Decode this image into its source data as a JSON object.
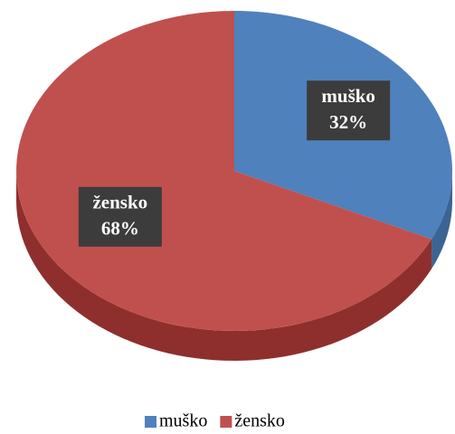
{
  "chart_data": {
    "type": "pie",
    "categories": [
      "muško",
      "žensko"
    ],
    "values": [
      32,
      68
    ],
    "value_labels": [
      "32%",
      "68%"
    ],
    "colors": [
      "#4f81bd",
      "#c0504d"
    ],
    "side_colors": [
      "#3b6494",
      "#8e2f2d"
    ],
    "legend": "bottom"
  }
}
